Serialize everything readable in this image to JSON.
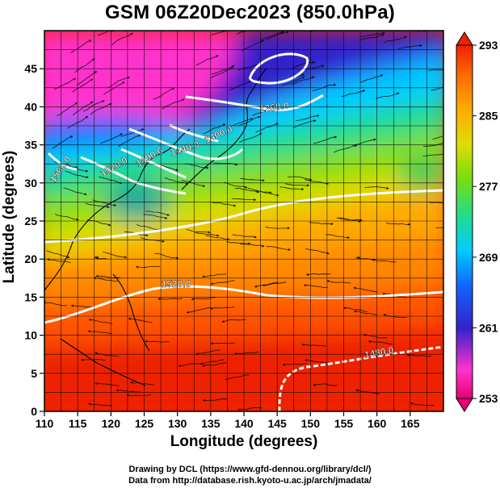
{
  "title": "GSM 06Z20Dec2023 (850.0hPa)",
  "map": {
    "xlabel": "Longitude (degrees)",
    "ylabel": "Latitude  (degrees)",
    "x_ticks": [
      "110",
      "115",
      "120",
      "125",
      "130",
      "135",
      "140",
      "145",
      "150",
      "155",
      "160",
      "165"
    ],
    "y_ticks": [
      "0",
      "5",
      "10",
      "15",
      "20",
      "25",
      "30",
      "35",
      "40",
      "45"
    ],
    "x_range": [
      110,
      170
    ],
    "y_range": [
      0,
      50
    ],
    "grid": true
  },
  "colorbar": {
    "labels": [
      "293",
      "285",
      "277",
      "269",
      "261",
      "253"
    ],
    "range": [
      253,
      293
    ],
    "colors": [
      "#e60073",
      "#ff33cc",
      "#3322cc",
      "#1166ff",
      "#00ccff",
      "#22dd88",
      "#77dd11",
      "#dddd00",
      "#ffaa00",
      "#ff6600",
      "#ee2200"
    ]
  },
  "contour_labels": [
    "1360.0",
    "1400.0",
    "1440.0",
    "1490.0",
    "1520.0",
    "1560.0",
    "1520.0",
    "1480.0"
  ],
  "credits": {
    "line1": "Drawing by DCL (https://www.gfd-dennou.org/library/dcl/)",
    "line2": "Data from http://database.rish.kyoto-u.ac.jp/arch/jmadata/"
  }
}
